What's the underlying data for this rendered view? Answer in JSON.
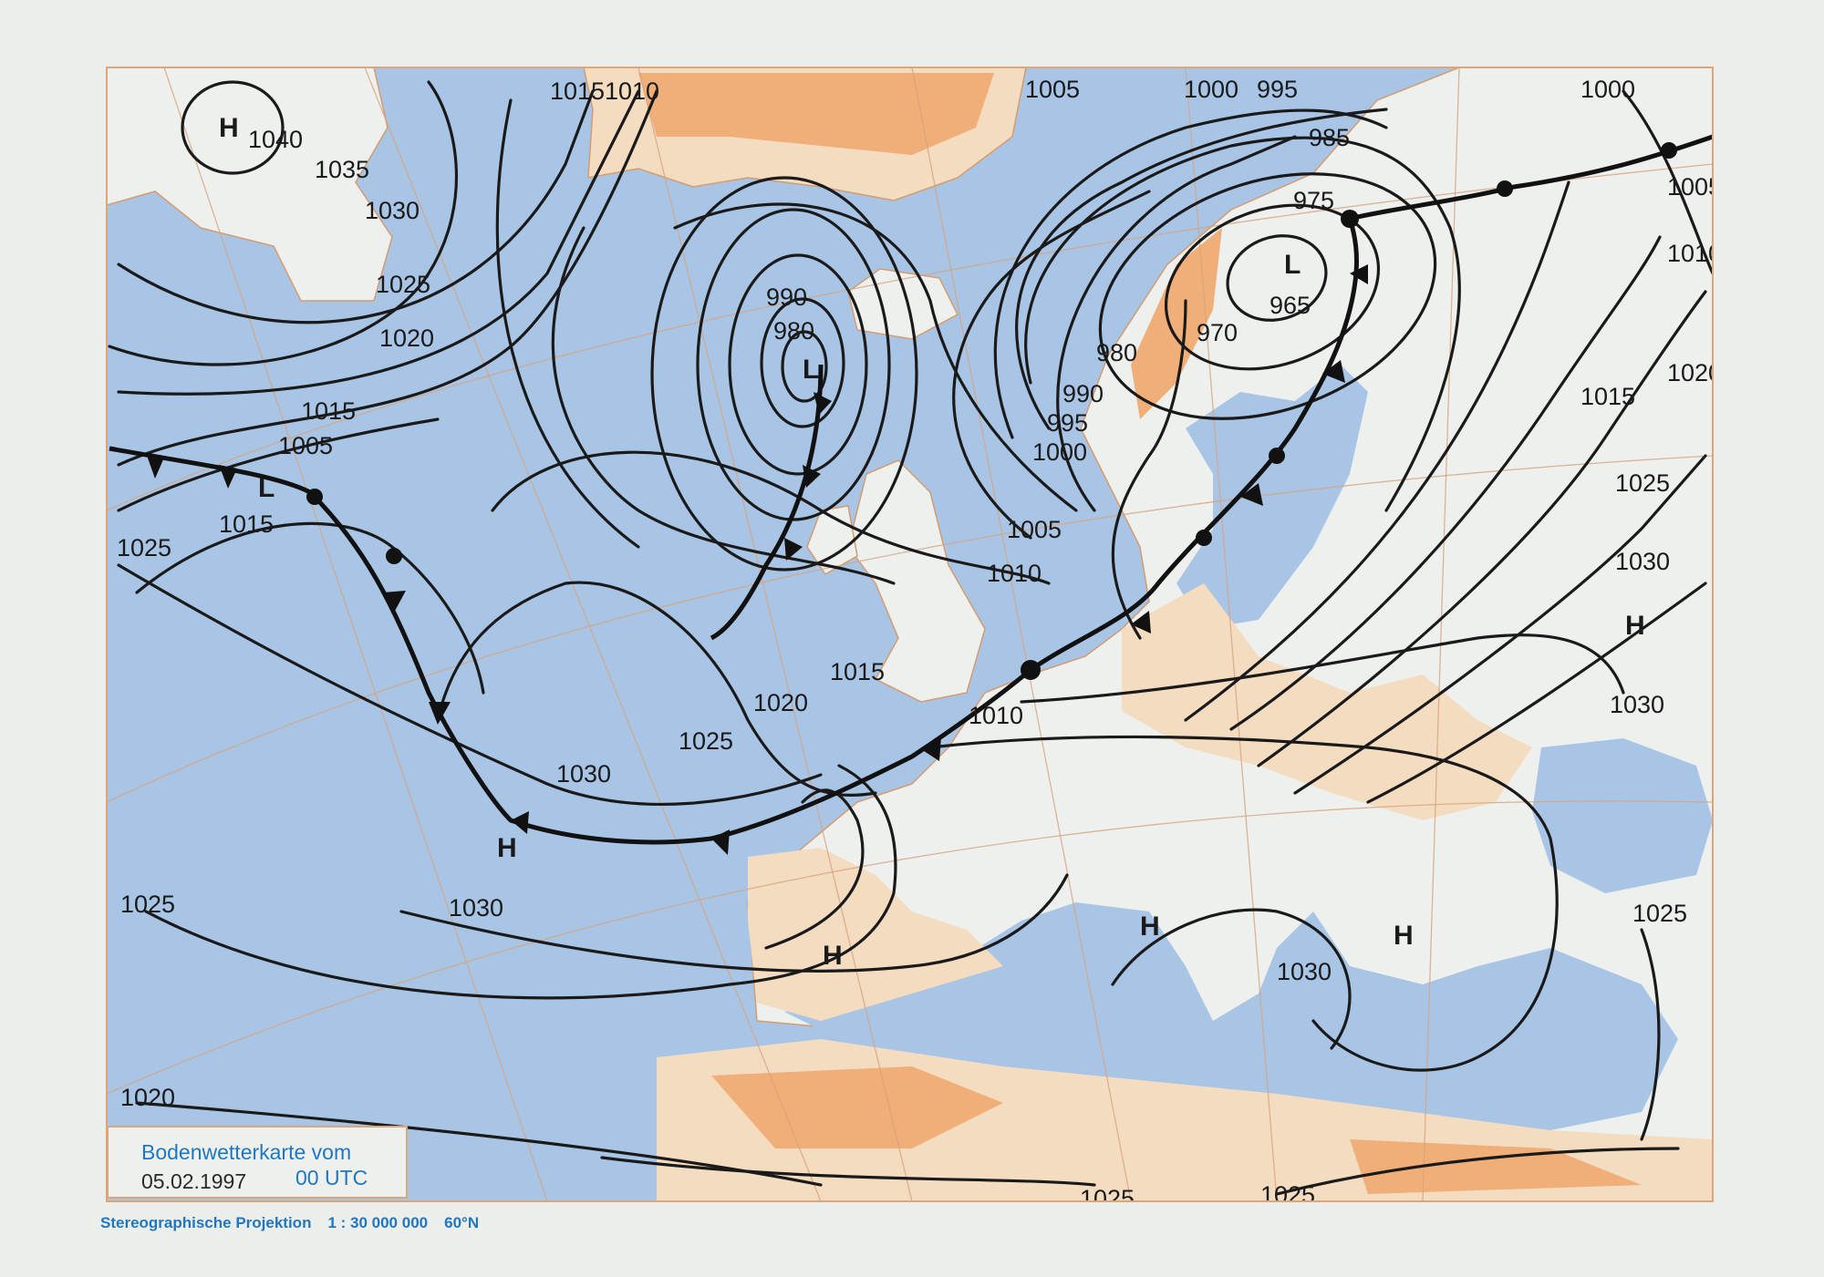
{
  "title_label": "Bodenwetterkarte vom",
  "date": "05.02.1997",
  "time": "00 UTC",
  "projection": "Stereographische Projektion",
  "scale": "1 : 30 000 000",
  "reference_latitude": "60°N",
  "colors": {
    "sea": "#a9c5e6",
    "lowland": "#f4dcc0",
    "highland": "#f0ae78",
    "snow": "#eef0ee",
    "lines": "#1a1a1a",
    "title_blue": "#1f77c0"
  },
  "pressure_systems": [
    {
      "type": "H"
    },
    {
      "type": "L"
    },
    {
      "type": "L"
    },
    {
      "type": "L"
    },
    {
      "type": "H"
    },
    {
      "type": "H"
    },
    {
      "type": "H"
    },
    {
      "type": "H"
    },
    {
      "type": "H"
    }
  ],
  "isobar_labels": [
    "1040",
    "1035",
    "1030",
    "1025",
    "1020",
    "1015",
    "1005",
    "1015",
    "1025",
    "1015",
    "1010",
    "990",
    "980",
    "1005",
    "1000",
    "995",
    "985",
    "975",
    "970",
    "980",
    "990",
    "995",
    "1000",
    "1005",
    "1010",
    "1015",
    "1020",
    "1025",
    "1030",
    "1010",
    "1030",
    "1025",
    "1020",
    "1030",
    "1025",
    "1025",
    "1025",
    "1000",
    "1005",
    "1010",
    "1020",
    "1015",
    "1025",
    "1030",
    "1030",
    "965"
  ]
}
